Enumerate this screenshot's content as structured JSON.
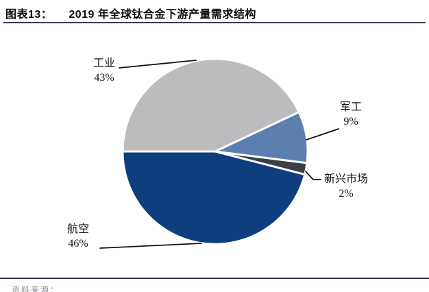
{
  "header": {
    "figure_label": "图表13：",
    "title": "2019 年全球钛合金下游产量需求结构"
  },
  "footer": {
    "source_label": "资料来源："
  },
  "colors": {
    "rule": "#3a3a52",
    "leader_line": "#111111",
    "slice_border": "#ffffff",
    "industry": "#bcbcbe",
    "military": "#5b80af",
    "emerging_markets": "#3a3e45",
    "aviation": "#0e3e7d"
  },
  "chart_data": {
    "type": "pie",
    "figure_label": "图表13：",
    "title": "2019 年全球钛合金下游产量需求结构",
    "start_angle_deg": 180,
    "direction": "clockwise",
    "legend_position": "none",
    "labels": "outside-with-leader-lines",
    "slices": [
      {
        "key": "industry",
        "label": "工业",
        "value": 43,
        "pct_label": "43%",
        "color": "#bcbcbe"
      },
      {
        "key": "military",
        "label": "军工",
        "value": 9,
        "pct_label": "9%",
        "color": "#5b80af"
      },
      {
        "key": "emerging-markets",
        "label": "新兴市场",
        "value": 2,
        "pct_label": "2%",
        "color": "#3a3e45"
      },
      {
        "key": "aviation",
        "label": "航空",
        "value": 46,
        "pct_label": "46%",
        "color": "#0e3e7d"
      }
    ]
  }
}
